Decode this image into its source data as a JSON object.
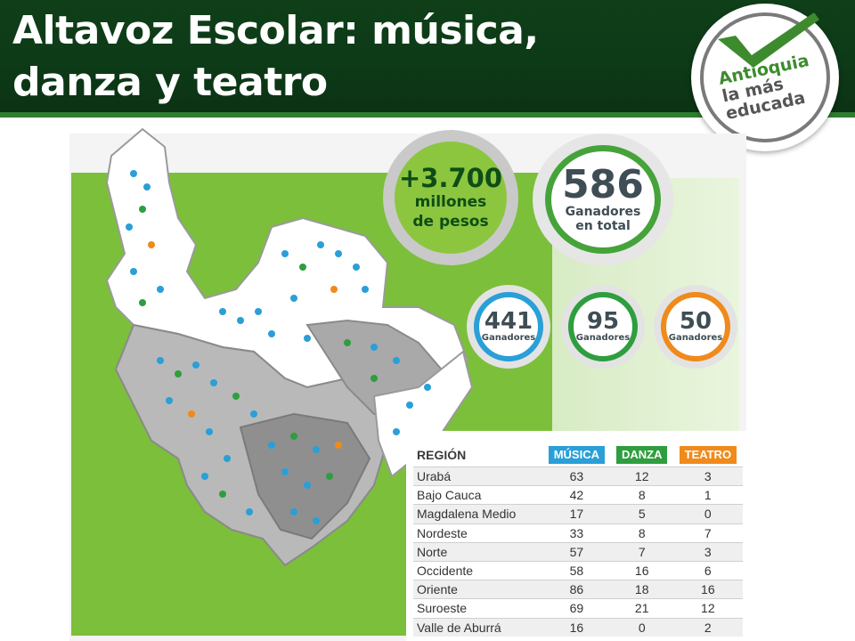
{
  "title": {
    "line1": "Altavoz Escolar: música,",
    "line2": "danza y teatro"
  },
  "logo": {
    "line1": "Antioquia",
    "line2": "la más",
    "line3": "educada",
    "icon": "checkmark-icon"
  },
  "money": {
    "amount": "+3.700",
    "line1": "millones",
    "line2": "de pesos"
  },
  "total": {
    "number": "586",
    "line1": "Ganadores",
    "line2": "en total"
  },
  "categories": [
    {
      "number": "441",
      "label": "Ganadores",
      "color": "#2a9fd8"
    },
    {
      "number": "95",
      "label": "Ganadores",
      "color": "#2e9e3e"
    },
    {
      "number": "50",
      "label": "Ganadores",
      "color": "#ef8a1b"
    }
  ],
  "table": {
    "headers": {
      "region": "REGIÓN",
      "musica": "MÚSICA",
      "danza": "DANZA",
      "teatro": "TEATRO"
    },
    "header_colors": {
      "musica": "#2a9fd8",
      "danza": "#2e9e3e",
      "teatro": "#ef8a1b"
    },
    "rows": [
      {
        "region": "Urabá",
        "musica": "63",
        "danza": "12",
        "teatro": "3"
      },
      {
        "region": "Bajo Cauca",
        "musica": "42",
        "danza": "8",
        "teatro": "1"
      },
      {
        "region": "Magdalena Medio",
        "musica": "17",
        "danza": "5",
        "teatro": "0"
      },
      {
        "region": "Nordeste",
        "musica": "33",
        "danza": "8",
        "teatro": "7"
      },
      {
        "region": "Norte",
        "musica": "57",
        "danza": "7",
        "teatro": "3"
      },
      {
        "region": "Occidente",
        "musica": "58",
        "danza": "16",
        "teatro": "6"
      },
      {
        "region": "Oriente",
        "musica": "86",
        "danza": "18",
        "teatro": "16"
      },
      {
        "region": "Suroeste",
        "musica": "69",
        "danza": "21",
        "teatro": "12"
      },
      {
        "region": "Valle de Aburrá",
        "musica": "16",
        "danza": "0",
        "teatro": "2"
      }
    ]
  },
  "colors": {
    "header_bg": "#0f3f19",
    "panel_green": "#7cbf3a",
    "money_green": "#8cc63f"
  }
}
